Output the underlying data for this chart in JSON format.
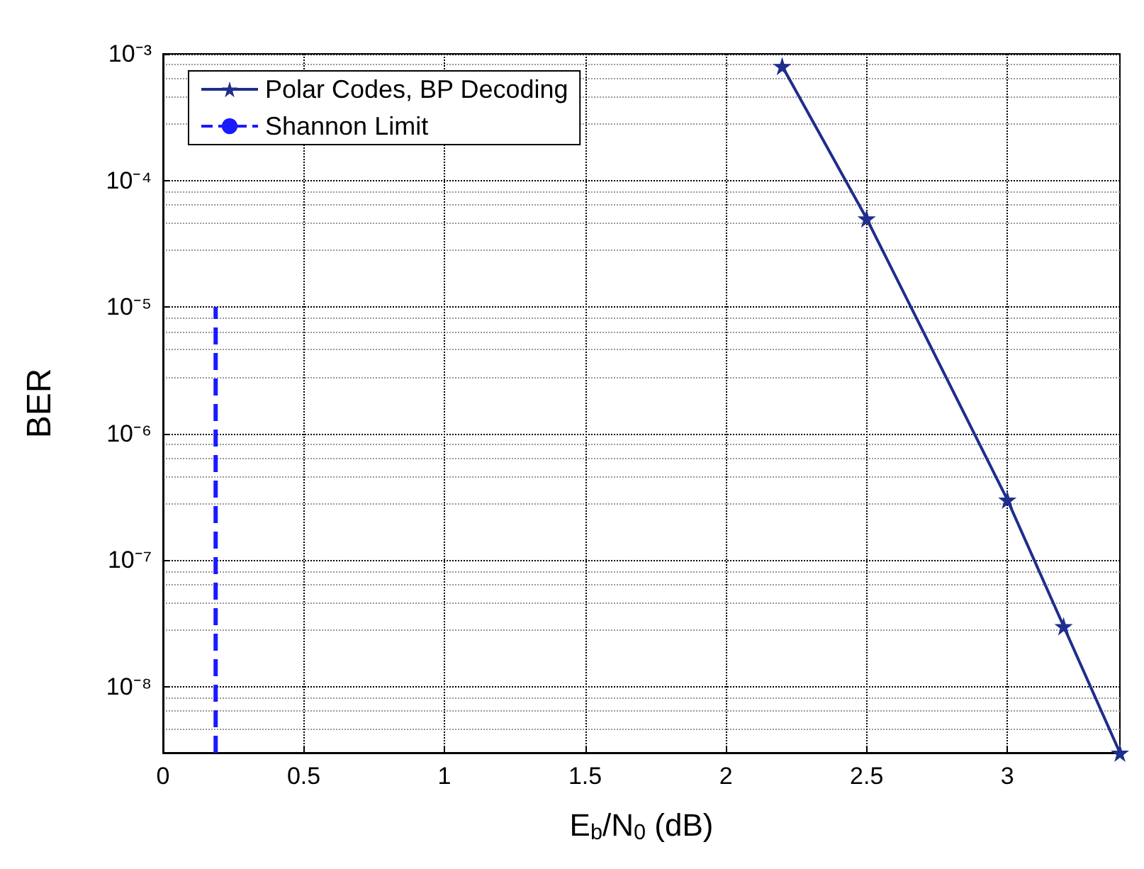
{
  "chart_data": {
    "type": "line",
    "xlabel": "E$_{b}$/N$_{0}$ (dB)",
    "ylabel": "BER",
    "log": "y",
    "grid": true,
    "legend": "top left",
    "marker": "star",
    "xlim": [
      0,
      3.4
    ],
    "xticks": [
      0,
      0.5,
      1,
      1.5,
      2,
      2.5,
      3
    ],
    "ylim": [
      3e-09,
      0.001
    ],
    "yticks": [
      {
        "value": 1e-08,
        "label": "10⁻⁸"
      },
      {
        "value": 1e-07,
        "label": "10⁻⁷"
      },
      {
        "value": 1e-06,
        "label": "10⁻⁶"
      },
      {
        "value": 1e-05,
        "label": "10⁻⁵"
      },
      {
        "value": 0.0001,
        "label": "10⁻⁴"
      },
      {
        "value": 0.001,
        "label": "10⁻³"
      }
    ],
    "series": [
      {
        "name": "Polar Codes, BP Decoding",
        "color": "#1f2d8c",
        "x": [
          2.2,
          2.5,
          3.0,
          3.2,
          3.4
        ],
        "values": [
          0.0008,
          5e-05,
          3e-07,
          3e-08,
          3e-09
        ]
      },
      {
        "name": "Shannon Limit",
        "color": "#1a1aff",
        "x": [
          0.187,
          0.187
        ],
        "values": [
          3e-09,
          1e-05
        ],
        "marker": "none",
        "line_style": "dashed"
      }
    ]
  }
}
